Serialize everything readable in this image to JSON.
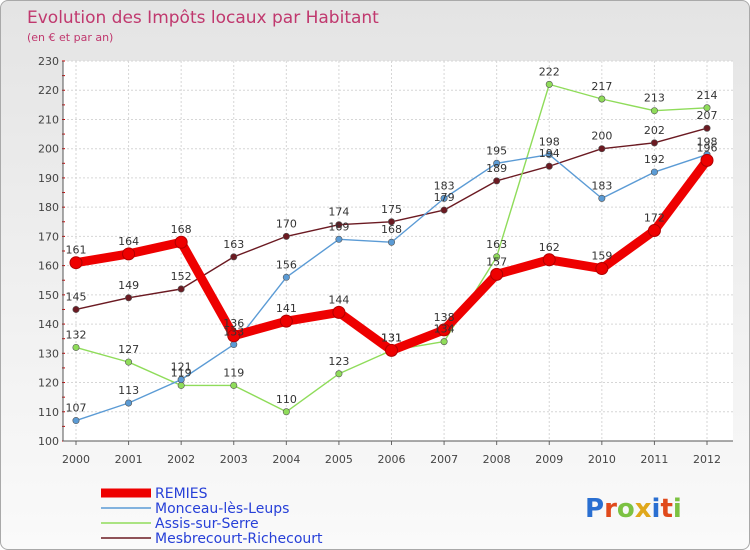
{
  "chart_data": {
    "type": "line",
    "title": "Evolution des Impôts locaux par Habitant",
    "subtitle": "(en € et par an)",
    "xlabel": "",
    "ylabel": "",
    "x": [
      "2000",
      "2001",
      "2002",
      "2003",
      "2004",
      "2005",
      "2006",
      "2007",
      "2008",
      "2009",
      "2010",
      "2011",
      "2012"
    ],
    "ylim": [
      100,
      230
    ],
    "yticks": [
      100,
      110,
      120,
      130,
      140,
      150,
      160,
      170,
      180,
      190,
      200,
      210,
      220,
      230
    ],
    "grid": true,
    "legend_position": "bottom-left",
    "series": [
      {
        "name": "Mesbrecourt-Richecourt",
        "color": "#6b1a22",
        "values": [
          145,
          149,
          152,
          163,
          170,
          174,
          175,
          179,
          189,
          194,
          200,
          202,
          207
        ]
      },
      {
        "name": "Assis-sur-Serre",
        "color": "#8fdc5a",
        "values": [
          132,
          127,
          119,
          119,
          110,
          123,
          131,
          134,
          163,
          222,
          217,
          213,
          214
        ]
      },
      {
        "name": "Monceau-lès-Leups",
        "color": "#5b9bd5",
        "values": [
          107,
          113,
          121,
          133,
          156,
          169,
          168,
          183,
          195,
          198,
          183,
          192,
          198
        ]
      },
      {
        "name": "REMIES",
        "color": "#ee0000",
        "values": [
          161,
          164,
          168,
          136,
          141,
          144,
          131,
          138,
          157,
          162,
          159,
          172,
          196
        ]
      }
    ]
  },
  "brand": {
    "text": "Proxiti"
  }
}
